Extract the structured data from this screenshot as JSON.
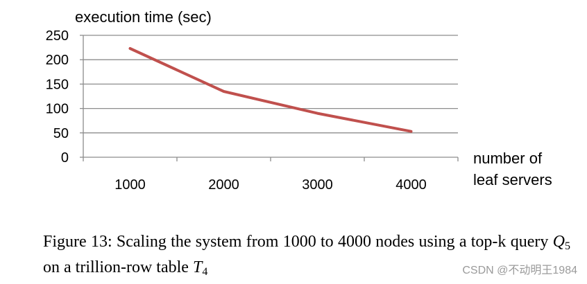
{
  "chart_data": {
    "type": "line",
    "ylabel": "execution time (sec)",
    "xlabel": [
      "number of",
      "leaf servers"
    ],
    "categories": [
      "1000",
      "2000",
      "3000",
      "4000"
    ],
    "series": [
      {
        "values": [
          223,
          135,
          90,
          53
        ],
        "color": "#c0504d"
      }
    ],
    "ylim": [
      0,
      250
    ],
    "yticks": [
      0,
      50,
      100,
      150,
      200,
      250
    ],
    "grid": true,
    "legend": "none"
  },
  "caption": {
    "part1": "Figure 13:  Scaling the system from 1000 to 4000 nodes using a top-k query ",
    "q_letter": "Q",
    "q_sub": "5",
    "part2": " on a trillion-row table ",
    "t_letter": "T",
    "t_sub": "4"
  },
  "watermark": "CSDN @不动明王1984"
}
